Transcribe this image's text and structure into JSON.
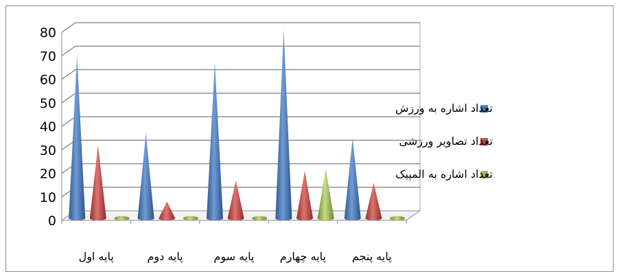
{
  "chart_data": {
    "type": "bar",
    "style": "3d-cone",
    "categories": [
      "پایه اول",
      "پایه دوم",
      "پایه سوم",
      "پایه چهارم",
      "پایه پنجم"
    ],
    "series": [
      {
        "name": "تعداد اشاره به ورزش",
        "color": "#4f81bd",
        "values": [
          68,
          35,
          65,
          79,
          33
        ]
      },
      {
        "name": "تعداد تصاویر ورزشی",
        "color": "#c0504d",
        "values": [
          30,
          6,
          15,
          19,
          14
        ]
      },
      {
        "name": "تعداد اشاره به المپیک",
        "color": "#9bbb59",
        "values": [
          0,
          0,
          0,
          20,
          0
        ]
      }
    ],
    "title": "",
    "xlabel": "",
    "ylabel": "",
    "ylim": [
      0,
      80
    ],
    "yticks": [
      "0",
      "10",
      "20",
      "30",
      "40",
      "50",
      "60",
      "70",
      "80"
    ],
    "grid": true,
    "legend_position": "right"
  }
}
